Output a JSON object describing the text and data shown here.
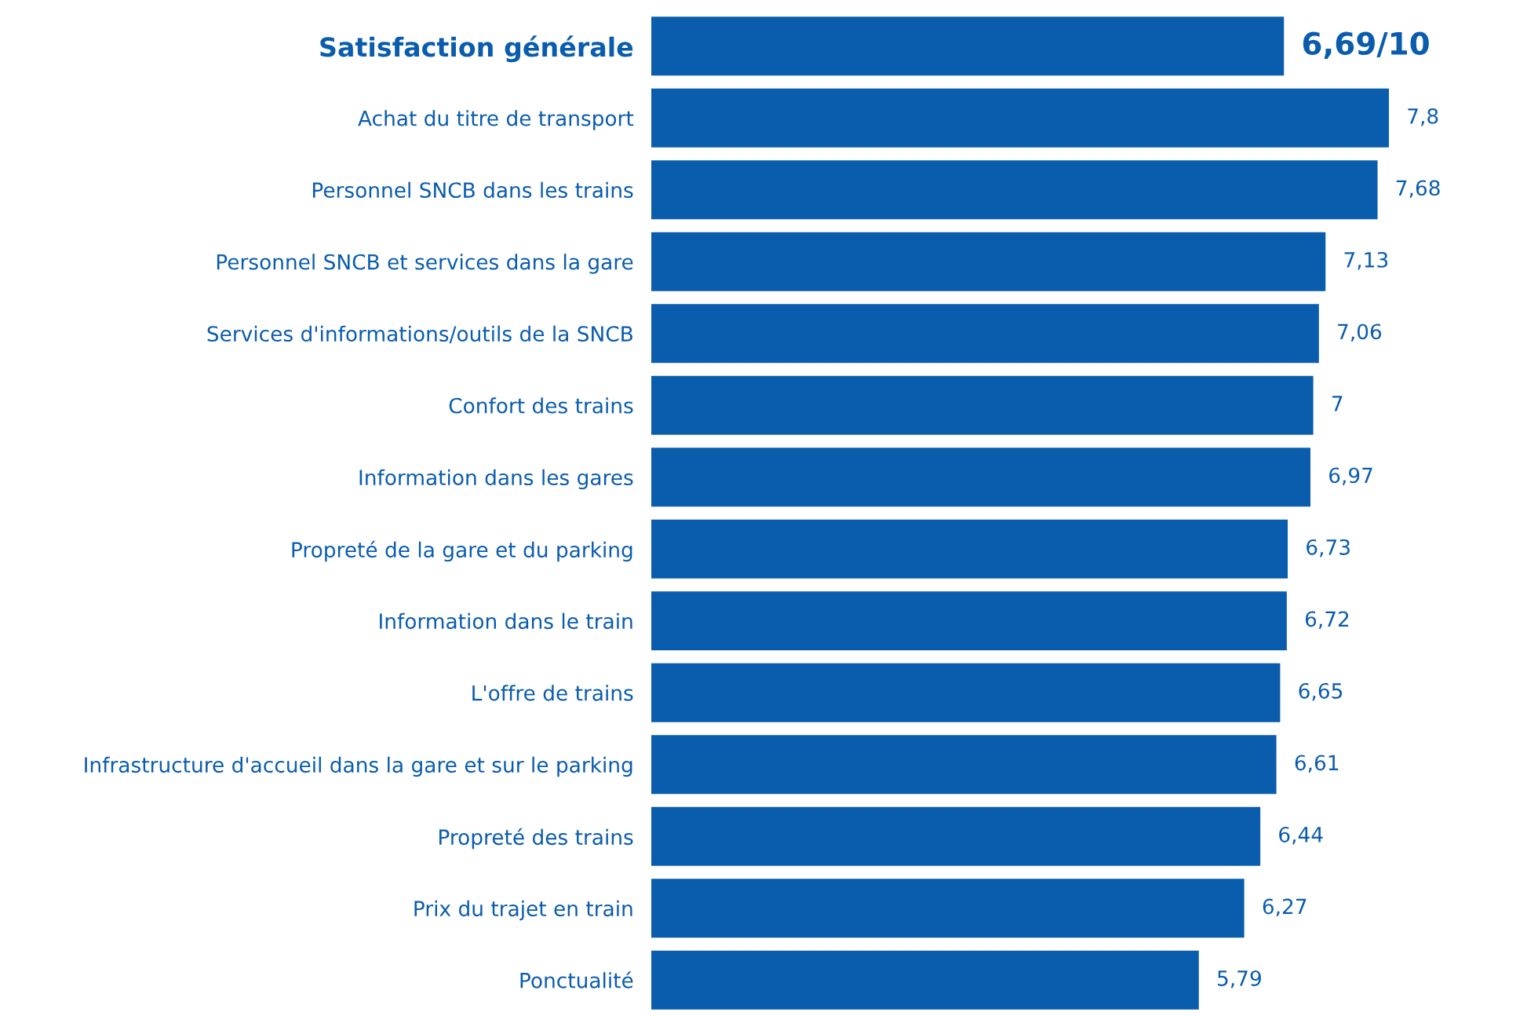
{
  "chart_data": {
    "type": "bar",
    "orientation": "horizontal",
    "categories": [
      "Satisfaction générale",
      "Achat du titre de transport",
      "Personnel SNCB dans les trains",
      "Personnel SNCB et services dans la gare",
      "Services d'informations/outils de la SNCB",
      "Confort des trains",
      "Information dans les gares",
      "Propreté de la gare et du parking",
      "Information dans le train",
      "L'offre de trains",
      "Infrastructure d'accueil dans la gare et sur le parking",
      "Propreté des trains",
      "Prix du trajet en train",
      "Ponctualité"
    ],
    "values": [
      6.69,
      7.8,
      7.68,
      7.13,
      7.06,
      7,
      6.97,
      6.73,
      6.72,
      6.65,
      6.61,
      6.44,
      6.27,
      5.79
    ],
    "value_labels": [
      "6,69/10",
      "7,8",
      "7,68",
      "7,13",
      "7,06",
      "7",
      "6,97",
      "6,73",
      "6,72",
      "6,65",
      "6,61",
      "6,44",
      "6,27",
      "5,79"
    ],
    "color": "#0a5cad",
    "grid": false,
    "legend": false
  }
}
